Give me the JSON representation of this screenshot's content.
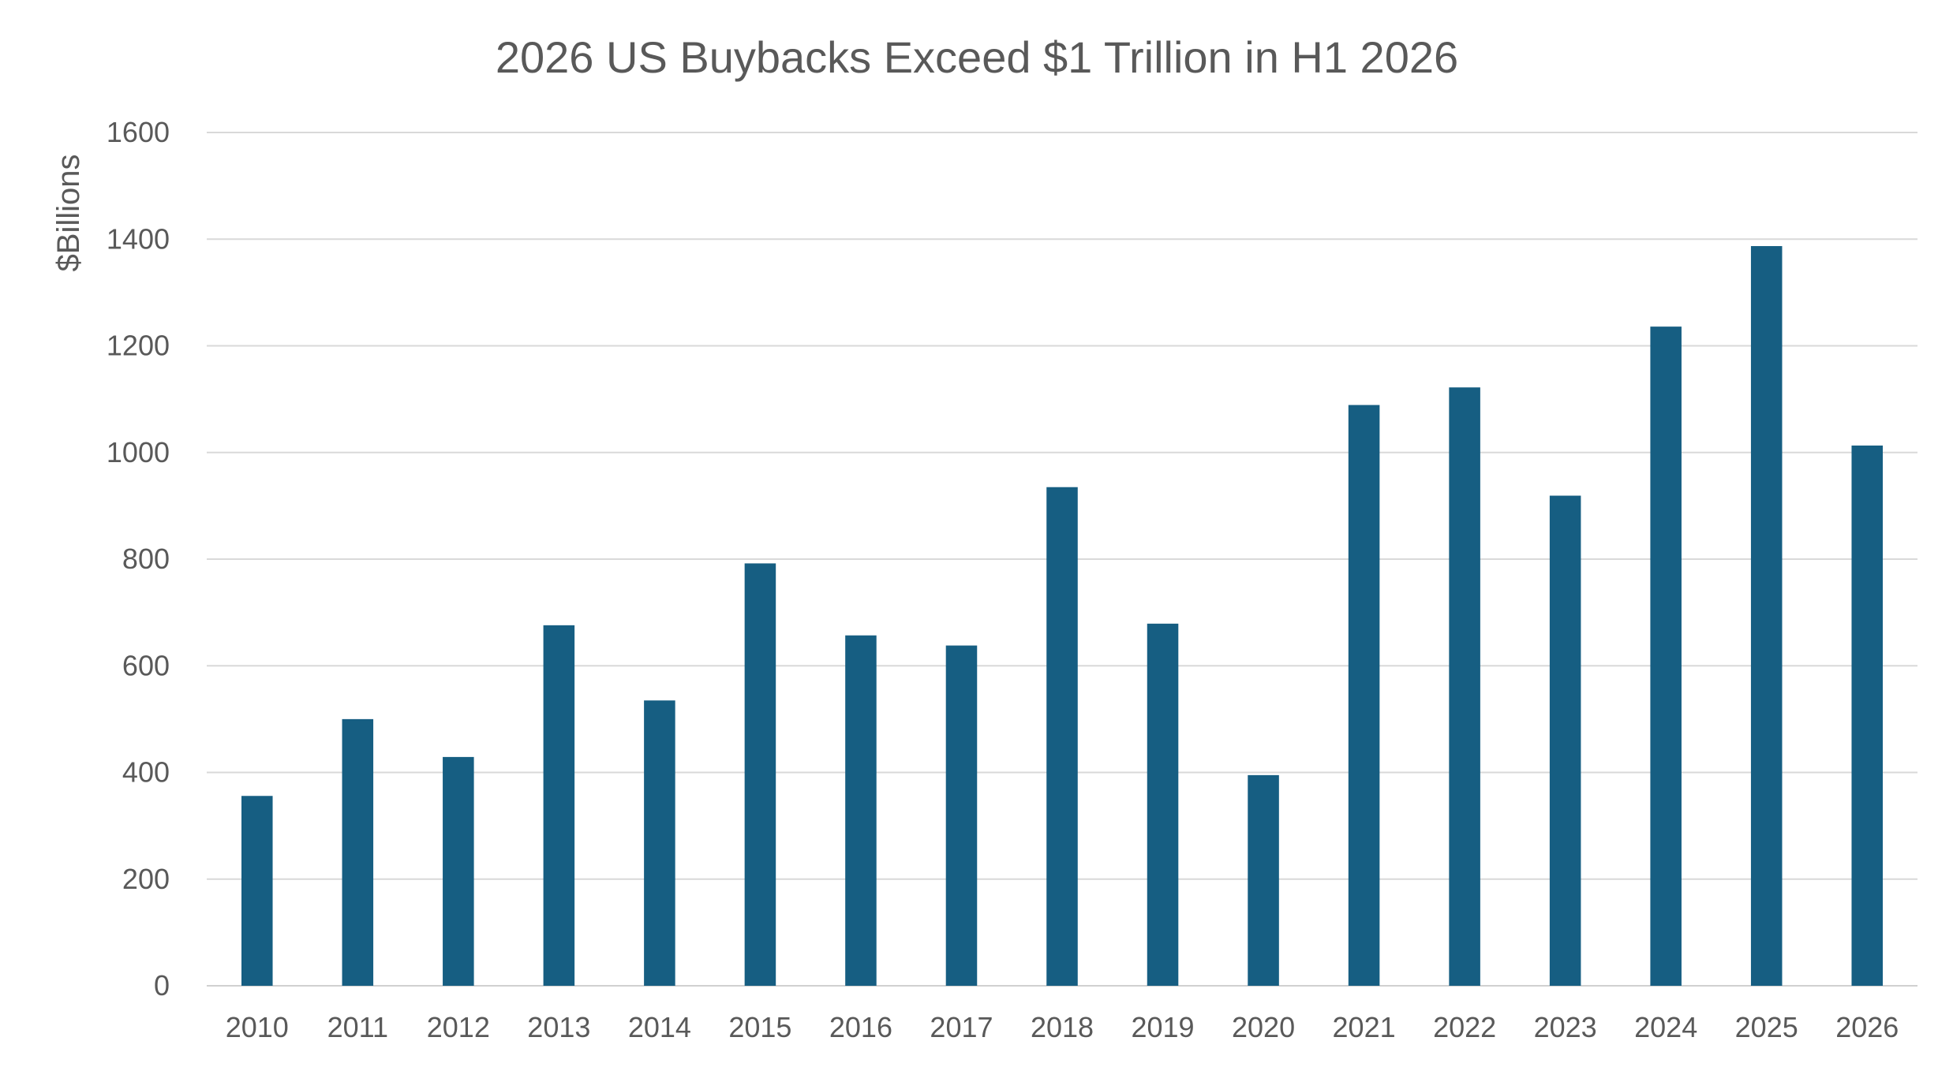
{
  "chart_data": {
    "type": "bar",
    "title": "2026 US Buybacks Exceed $1 Trillion in H1 2026",
    "xlabel": "",
    "ylabel": "$Billions",
    "ylim": [
      0,
      1600
    ],
    "yticks": [
      0,
      200,
      400,
      600,
      800,
      1000,
      1200,
      1400,
      1600
    ],
    "grid": true,
    "legend": "none",
    "bar_color": "#165e82",
    "categories": [
      "2010",
      "2011",
      "2012",
      "2013",
      "2014",
      "2015",
      "2016",
      "2017",
      "2018",
      "2019",
      "2020",
      "2021",
      "2022",
      "2023",
      "2024",
      "2025",
      "2026"
    ],
    "values": [
      356,
      500,
      429,
      676,
      535,
      792,
      657,
      638,
      935,
      679,
      395,
      1089,
      1122,
      919,
      1236,
      1387,
      1013
    ]
  }
}
